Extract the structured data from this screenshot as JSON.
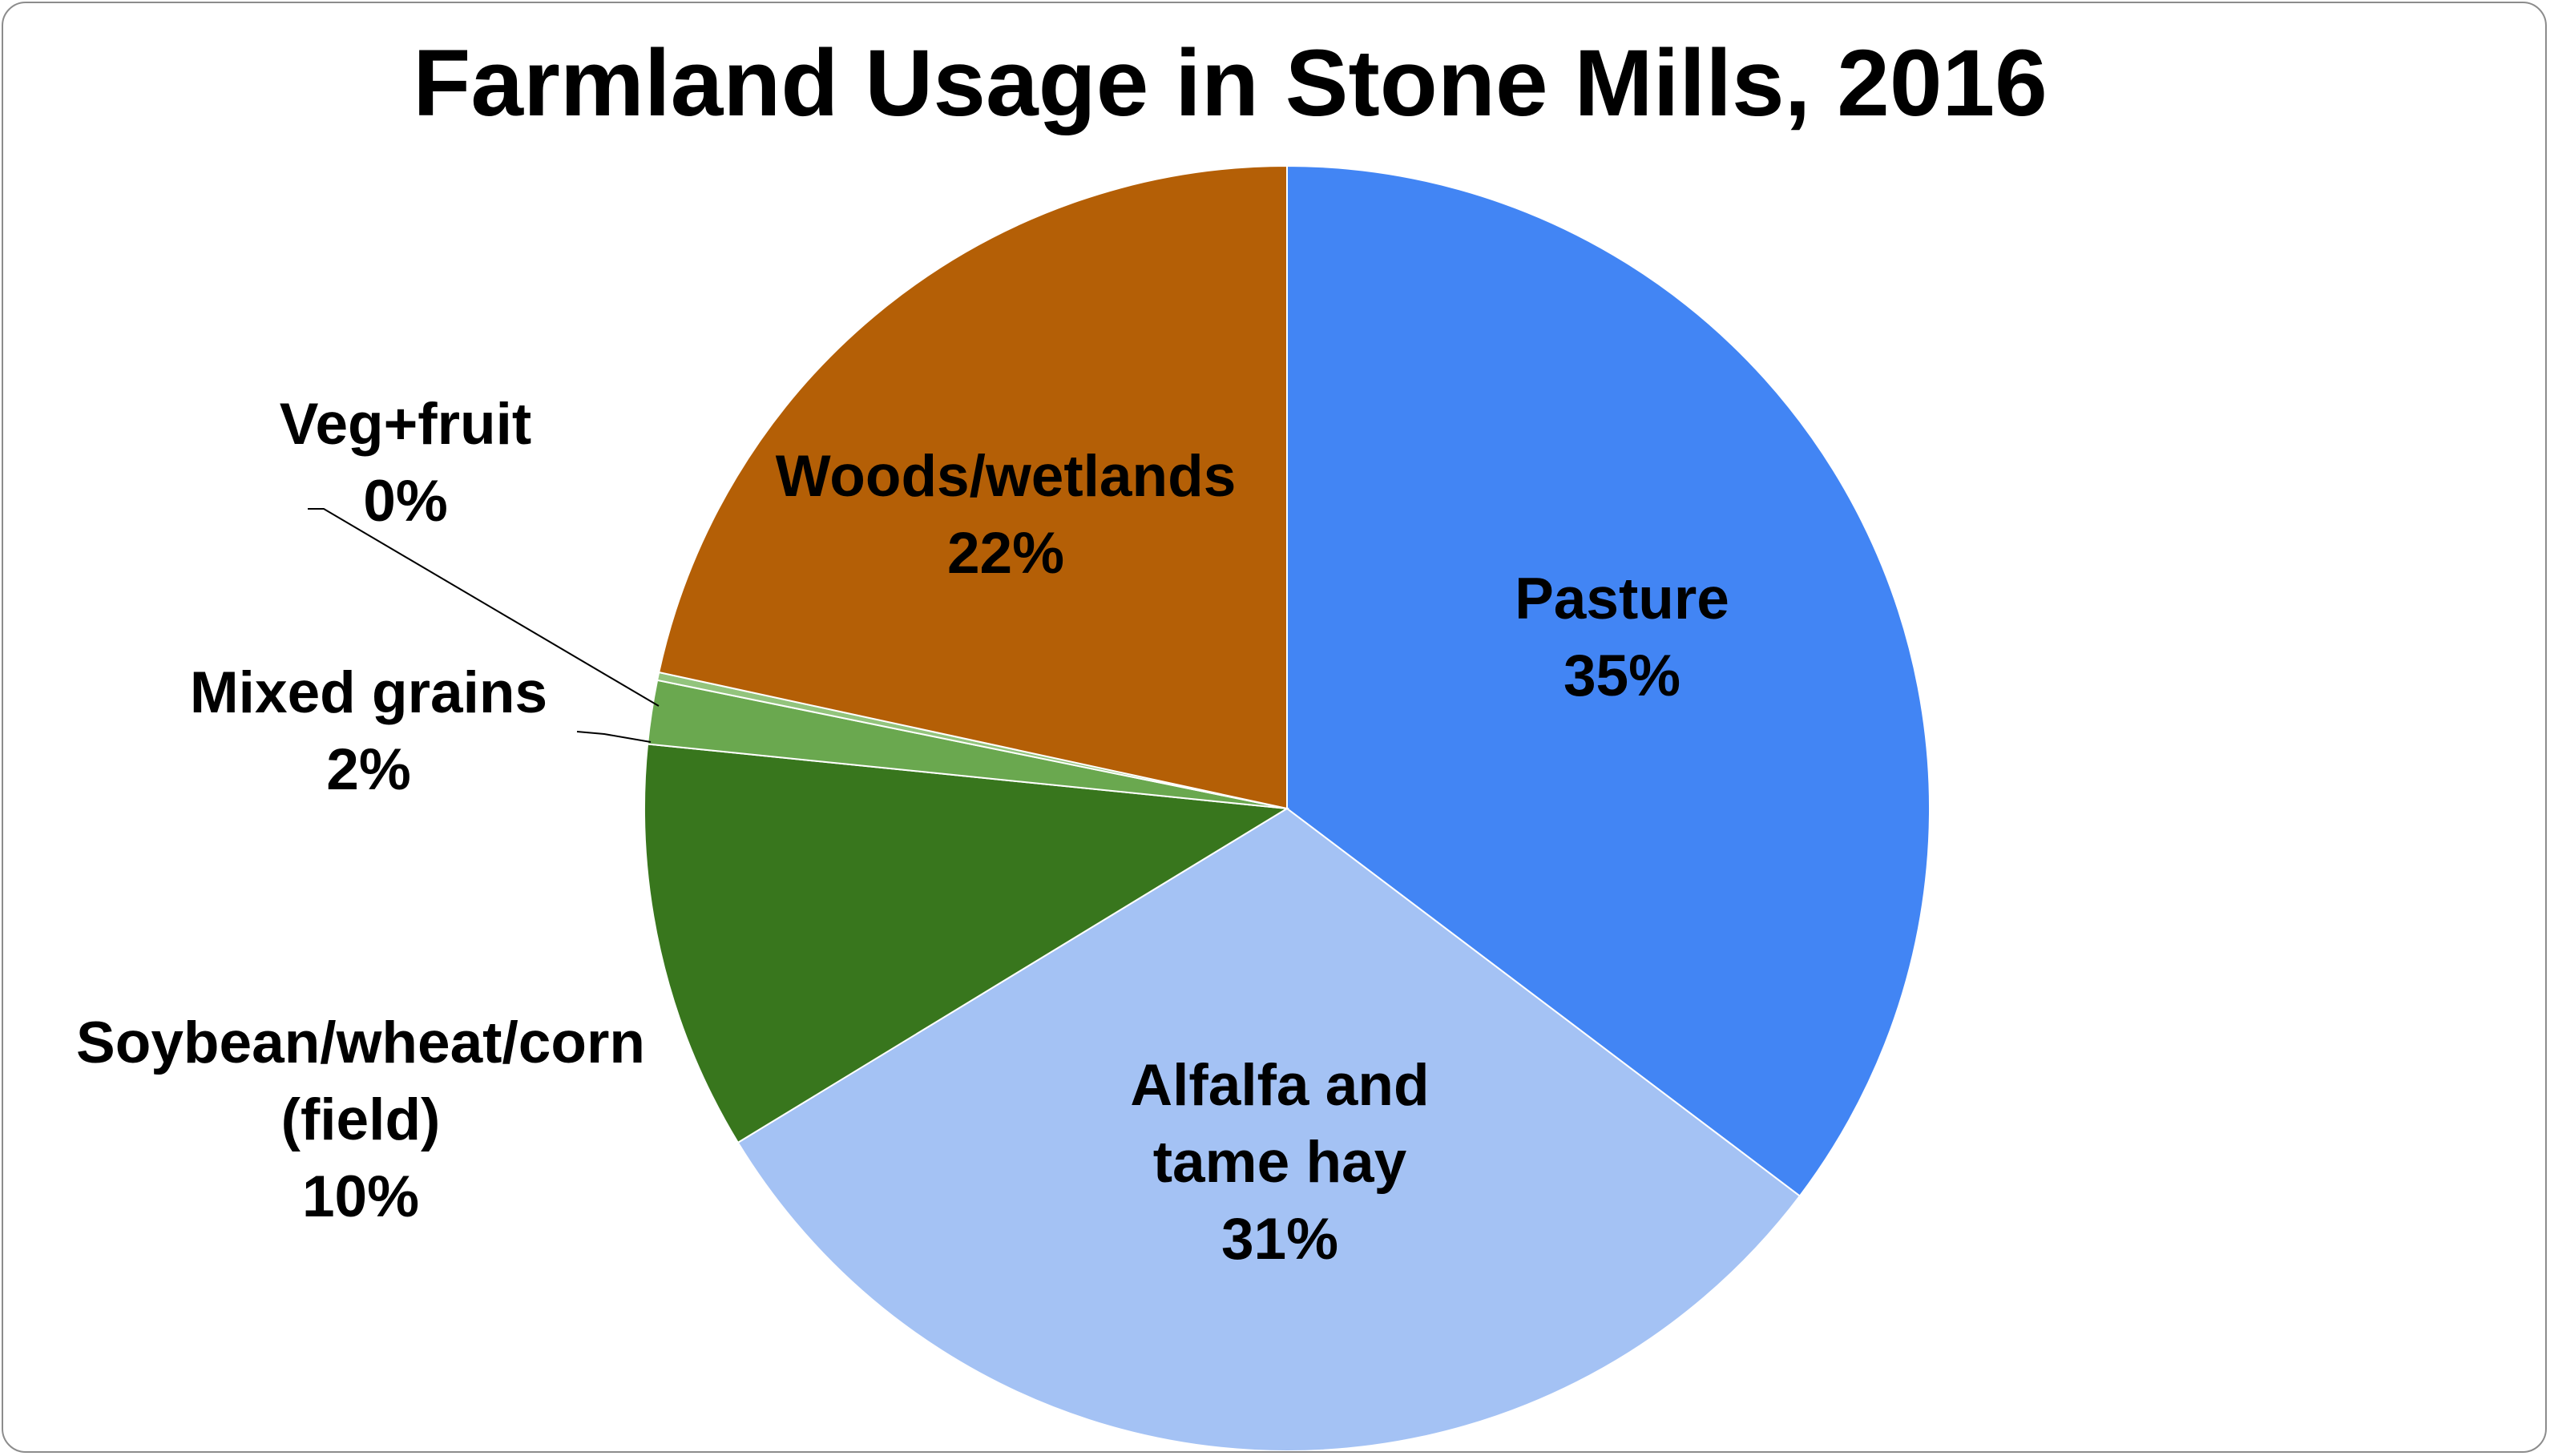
{
  "chart_data": {
    "type": "pie",
    "title": "Farmland Usage in Stone Mills, 2016",
    "start_angle_deg": 0,
    "direction": "clockwise",
    "slices": [
      {
        "label_lines": [
          "Pasture"
        ],
        "value_label": "35%",
        "value": 35.3,
        "color": "#4285F4"
      },
      {
        "label_lines": [
          "Alfalfa and",
          "tame hay"
        ],
        "value_label": "31%",
        "value": 31.0,
        "color": "#A4C2F4"
      },
      {
        "label_lines": [
          "Soybean/wheat/corn",
          "(field)"
        ],
        "value_label": "10%",
        "value": 10.3,
        "color": "#38761D"
      },
      {
        "label_lines": [
          "Mixed grains"
        ],
        "value_label": "2%",
        "value": 1.6,
        "color": "#6AA84F"
      },
      {
        "label_lines": [
          "Veg+fruit"
        ],
        "value_label": "0%",
        "value": 0.2,
        "color": "#93C47D"
      },
      {
        "label_lines": [
          "Woods/wetlands"
        ],
        "value_label": "22%",
        "value": 21.6,
        "color": "#B45F06"
      }
    ]
  }
}
